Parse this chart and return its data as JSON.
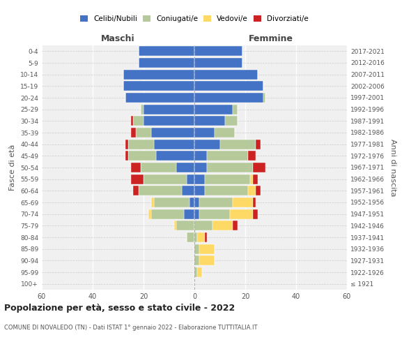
{
  "age_groups": [
    "100+",
    "95-99",
    "90-94",
    "85-89",
    "80-84",
    "75-79",
    "70-74",
    "65-69",
    "60-64",
    "55-59",
    "50-54",
    "45-49",
    "40-44",
    "35-39",
    "30-34",
    "25-29",
    "20-24",
    "15-19",
    "10-14",
    "5-9",
    "0-4"
  ],
  "birth_years": [
    "≤ 1921",
    "1922-1926",
    "1927-1931",
    "1932-1936",
    "1937-1941",
    "1942-1946",
    "1947-1951",
    "1952-1956",
    "1957-1961",
    "1962-1966",
    "1967-1971",
    "1972-1976",
    "1977-1981",
    "1982-1986",
    "1987-1991",
    "1992-1996",
    "1997-2001",
    "2002-2006",
    "2007-2011",
    "2012-2016",
    "2017-2021"
  ],
  "maschi": {
    "celibi": [
      0,
      0,
      0,
      0,
      0,
      0,
      4,
      2,
      5,
      3,
      7,
      15,
      16,
      17,
      20,
      20,
      27,
      28,
      28,
      22,
      22
    ],
    "coniugati": [
      0,
      0,
      0,
      0,
      3,
      7,
      13,
      14,
      17,
      17,
      14,
      11,
      10,
      6,
      4,
      1,
      0,
      0,
      0,
      0,
      0
    ],
    "vedovi": [
      0,
      0,
      0,
      0,
      0,
      1,
      1,
      1,
      0,
      0,
      0,
      0,
      0,
      0,
      0,
      0,
      0,
      0,
      0,
      0,
      0
    ],
    "divorziati": [
      0,
      0,
      0,
      0,
      0,
      0,
      0,
      0,
      2,
      5,
      4,
      1,
      1,
      2,
      1,
      0,
      0,
      0,
      0,
      0,
      0
    ]
  },
  "femmine": {
    "nubili": [
      0,
      0,
      0,
      0,
      0,
      0,
      2,
      2,
      4,
      4,
      5,
      5,
      10,
      8,
      12,
      15,
      27,
      27,
      25,
      19,
      19
    ],
    "coniugate": [
      0,
      1,
      2,
      2,
      1,
      7,
      12,
      13,
      17,
      18,
      18,
      16,
      14,
      8,
      5,
      2,
      1,
      0,
      0,
      0,
      0
    ],
    "vedove": [
      0,
      2,
      6,
      6,
      3,
      8,
      9,
      8,
      3,
      1,
      0,
      0,
      0,
      0,
      0,
      0,
      0,
      0,
      0,
      0,
      0
    ],
    "divorziate": [
      0,
      0,
      0,
      0,
      1,
      2,
      2,
      1,
      2,
      2,
      5,
      3,
      2,
      0,
      0,
      0,
      0,
      0,
      0,
      0,
      0
    ]
  },
  "colors": {
    "celibi": "#4472c4",
    "coniugati": "#b5c99a",
    "vedovi": "#ffd966",
    "divorziati": "#cc2222"
  },
  "xlim": 60,
  "title": "Popolazione per età, sesso e stato civile - 2022",
  "subtitle": "COMUNE DI NOVALEDO (TN) - Dati ISTAT 1° gennaio 2022 - Elaborazione TUTTITALIA.IT",
  "ylabel_left": "Fasce di età",
  "ylabel_right": "Anni di nascita",
  "xlabel_maschi": "Maschi",
  "xlabel_femmine": "Femmine",
  "legend_labels": [
    "Celibi/Nubili",
    "Coniugati/e",
    "Vedovi/e",
    "Divorziati/e"
  ],
  "background_color": "#ffffff",
  "ax_bg": "#f0f0f0"
}
